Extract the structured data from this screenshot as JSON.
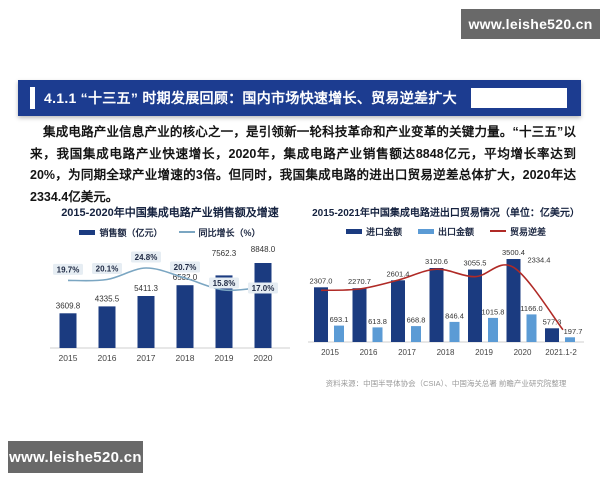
{
  "watermark": {
    "text": "www.leishe520.cn"
  },
  "header": {
    "section_number": "4.1.1",
    "title": "“十三五” 时期发展回顾：国内市场快速增长、贸易逆差扩大"
  },
  "paragraph": {
    "text": "集成电路产业信息产业的核心之一，是引领新一轮科技革命和产业变革的关键力量。“十三五”以来，我国集成电路产业快速增长，2020年，集成电路产业销售额达8848亿元，平均增长率达到20%，为同期全球产业增速的3倍。但同时，我国集成电路的进出口贸易逆差总体扩大，2020年达2334.4亿美元。"
  },
  "chart_data": [
    {
      "type": "bar",
      "title": "2015-2020年中国集成电路产业销售额及增速",
      "categories": [
        "2015",
        "2016",
        "2017",
        "2018",
        "2019",
        "2020"
      ],
      "series": [
        {
          "name": "销售额（亿元）",
          "kind": "bar",
          "color": "#1b3b80",
          "values": [
            3609.8,
            4335.5,
            5411.3,
            6532.0,
            7562.3,
            8848.0
          ],
          "value_labels": [
            "3609.8",
            "4335.5",
            "5411.3",
            "6532.0",
            "7562.3",
            "8848.0"
          ]
        },
        {
          "name": "同比增长（%）",
          "kind": "line",
          "color": "#7ba6c2",
          "values": [
            19.7,
            20.1,
            24.8,
            20.7,
            15.8,
            17.0
          ],
          "value_labels": [
            "19.7%",
            "20.1%",
            "24.8%",
            "20.7%",
            "15.8%",
            "17.0%"
          ]
        }
      ],
      "ylim": [
        0,
        8848
      ],
      "grid": false,
      "legend_position": "top"
    },
    {
      "type": "bar",
      "title": "2015-2021年中国集成电路进出口贸易情况（单位：亿美元）",
      "categories": [
        "2015",
        "2016",
        "2017",
        "2018",
        "2019",
        "2020",
        "2021.1-2"
      ],
      "series": [
        {
          "name": "进口金额",
          "kind": "bar",
          "color": "#1b3b80",
          "values": [
            2307.0,
            2270.7,
            2601.4,
            3120.6,
            3055.5,
            3500.4,
            577.3
          ],
          "value_labels": [
            "2307.0",
            "2270.7",
            "2601.4",
            "3120.6",
            "3055.5",
            "3500.4",
            "577.3"
          ]
        },
        {
          "name": "出口金额",
          "kind": "bar",
          "color": "#5b9bd5",
          "values": [
            693.1,
            613.8,
            668.8,
            846.4,
            1015.8,
            1166.0,
            197.7
          ],
          "value_labels": [
            "693.1",
            "613.8",
            "668.8",
            "846.4",
            "1015.8",
            "1166.0",
            "197.7"
          ]
        },
        {
          "name": "贸易逆差",
          "kind": "line",
          "color": "#b02a26",
          "values": [
            1613.9,
            1656.9,
            1932.6,
            2274.2,
            2039.7,
            2334.4,
            379.6
          ],
          "value_labels": [
            "",
            "",
            "",
            "",
            "",
            "2334.4",
            ""
          ]
        }
      ],
      "ylim": [
        0,
        3500.4
      ],
      "grid": false,
      "legend_position": "top",
      "source": "资料来源：中国半导体协会（CSIA）、中国海关总署 前瞻产业研究院整理"
    }
  ]
}
